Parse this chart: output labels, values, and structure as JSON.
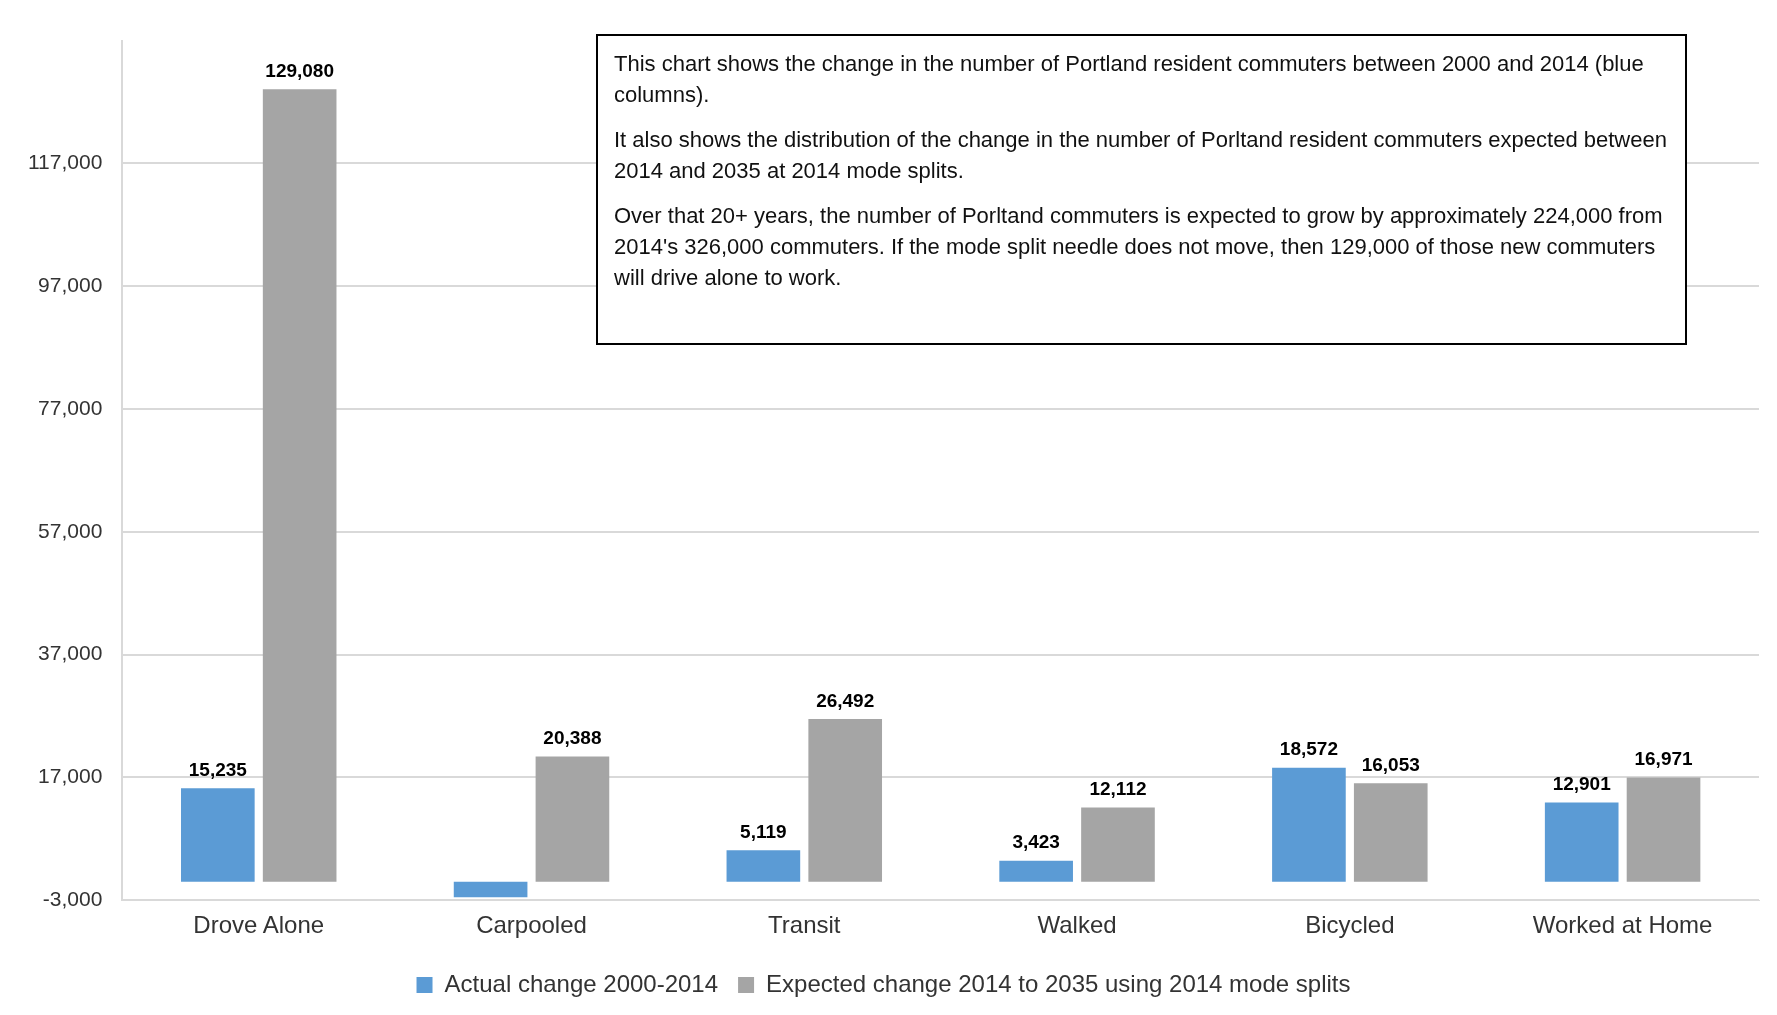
{
  "chart_data": {
    "type": "bar",
    "categories": [
      "Drove Alone",
      "Carpooled",
      "Transit",
      "Walked",
      "Bicycled",
      "Worked at Home"
    ],
    "series": [
      {
        "name": "Actual change 2000-2014",
        "color": "#5b9bd5",
        "values": [
          15235,
          -2500,
          5119,
          3423,
          18572,
          12901
        ],
        "value_labels": [
          "15,235",
          null,
          "5,119",
          "3,423",
          "18,572",
          "12,901"
        ]
      },
      {
        "name": "Expected change 2014 to 2035 using 2014 mode splits",
        "color": "#a5a5a5",
        "values": [
          129080,
          20388,
          26492,
          12112,
          16053,
          16971
        ],
        "value_labels": [
          "129,080",
          "20,388",
          "26,492",
          "12,112",
          "16,053",
          "16,971"
        ]
      }
    ],
    "ylim": [
      -3000,
      137000
    ],
    "yticks": [
      {
        "value": -3000,
        "label": "-3,000"
      },
      {
        "value": 17000,
        "label": "17,000"
      },
      {
        "value": 37000,
        "label": "37,000"
      },
      {
        "value": 57000,
        "label": "57,000"
      },
      {
        "value": 77000,
        "label": "77,000"
      },
      {
        "value": 97000,
        "label": "97,000"
      },
      {
        "value": 117000,
        "label": "117,000"
      }
    ],
    "grid": "y",
    "legend": "bottom",
    "annotations": [
      "This chart shows the change in the number of Portland resident commuters between 2000 and 2014 (blue columns).",
      "It also shows the distribution of the change in the number of Porltand resident commuters expected between 2014 and 2035 at 2014 mode splits.",
      "Over that 20+ years, the number of Porltand commuters is expected to grow by approximately 224,000 from 2014's 326,000 commuters. If the mode split needle does not move, then 129,000 of those new commuters will drive alone to work."
    ]
  }
}
